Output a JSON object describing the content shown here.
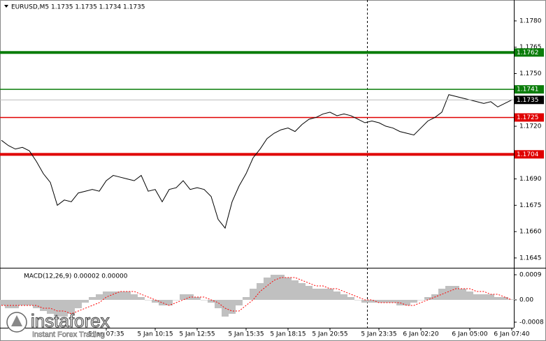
{
  "chart_data": [
    {
      "type": "line",
      "title": "EURUSD,M5  1.1735 1.1735 1.1734 1.1735",
      "color": "#000000",
      "values": [
        1.1712,
        1.1709,
        1.1707,
        1.1708,
        1.1706,
        1.17,
        1.1693,
        1.1688,
        1.1675,
        1.1678,
        1.1677,
        1.1682,
        1.1683,
        1.1684,
        1.1683,
        1.1689,
        1.1692,
        1.1691,
        1.169,
        1.1689,
        1.1692,
        1.1683,
        1.1684,
        1.1677,
        1.1684,
        1.1685,
        1.1689,
        1.1684,
        1.1685,
        1.1684,
        1.168,
        1.1667,
        1.1662,
        1.1677,
        1.1686,
        1.1693,
        1.1702,
        1.1707,
        1.1713,
        1.1716,
        1.1718,
        1.1719,
        1.1717,
        1.1721,
        1.1724,
        1.1725,
        1.1727,
        1.1728,
        1.1726,
        1.1727,
        1.1726,
        1.1724,
        1.1722,
        1.1723,
        1.1722,
        1.172,
        1.1719,
        1.1717,
        1.1716,
        1.1715,
        1.1719,
        1.1723,
        1.1725,
        1.1728,
        1.1738,
        1.1737,
        1.1736,
        1.1735,
        1.1734,
        1.1733,
        1.1734,
        1.1731,
        1.1733,
        1.1735
      ],
      "ylim": [
        1.16398,
        1.17911
      ],
      "yticks": [
        {
          "value": 1.178,
          "label": "1.1780"
        },
        {
          "value": 1.1765,
          "label": "1.1765"
        },
        {
          "value": 1.175,
          "label": "1.1750"
        },
        {
          "value": 1.172,
          "label": "1.1720"
        },
        {
          "value": 1.169,
          "label": "1.1690"
        },
        {
          "value": 1.1675,
          "label": "1.1675"
        },
        {
          "value": 1.166,
          "label": "1.1660"
        },
        {
          "value": 1.1645,
          "label": "1.1645"
        }
      ],
      "levels": [
        {
          "value": 1.1762,
          "color": "#0a7d0a",
          "style": "thick"
        },
        {
          "value": 1.1741,
          "color": "#0a7d0a",
          "style": "thin"
        },
        {
          "value": 1.1725,
          "color": "#e00000",
          "style": "thin"
        },
        {
          "value": 1.1704,
          "color": "#e00000",
          "style": "thick"
        }
      ],
      "last": {
        "value": 1.1735,
        "color": "#000000"
      }
    },
    {
      "type": "macd",
      "title": "MACD(12,26,9) 0.00002 0.00000",
      "histogram": {
        "color": "#c0c0c0",
        "values": [
          -0.0002,
          -0.0003,
          -0.0003,
          -0.0002,
          -0.0002,
          -0.0003,
          -0.0004,
          -0.0005,
          -0.0006,
          -0.0006,
          -0.0005,
          -0.0003,
          -0.0001,
          0.0001,
          0.0002,
          0.0003,
          0.0003,
          0.0003,
          0.0003,
          0.0002,
          0.0001,
          0,
          -0.0001,
          -0.0002,
          -0.0002,
          0,
          0.0002,
          0.0002,
          0.0001,
          0,
          -0.0001,
          -0.0003,
          -0.0006,
          -0.0005,
          -0.0002,
          0.0001,
          0.0004,
          0.0006,
          0.0008,
          0.0009,
          0.0009,
          0.0008,
          0.0007,
          0.0006,
          0.0005,
          0.0004,
          0.0004,
          0.0004,
          0.0003,
          0.0002,
          0.0001,
          0,
          -0.0001,
          -0.0001,
          -0.0001,
          -0.0001,
          -0.0001,
          -0.0002,
          -0.0002,
          -0.0001,
          0,
          0.0001,
          0.0002,
          0.0004,
          0.0005,
          0.0005,
          0.0004,
          0.0003,
          0.0002,
          0.0002,
          0.0002,
          0.0001,
          0.0001,
          2e-05
        ]
      },
      "signal": {
        "color": "#ff0000",
        "values": [
          -0.0002,
          -0.0002,
          -0.0002,
          -0.0002,
          -0.0002,
          -0.0002,
          -0.0003,
          -0.0003,
          -0.0004,
          -0.0004,
          -0.0005,
          -0.0004,
          -0.0003,
          -0.0002,
          -0.0001,
          0.0001,
          0.0002,
          0.0003,
          0.0003,
          0.0003,
          0.0002,
          0.0001,
          0,
          -0.0001,
          -0.0002,
          -0.0001,
          0,
          0.0001,
          0.0001,
          0.0001,
          0,
          -0.0001,
          -0.0003,
          -0.0004,
          -0.0004,
          -0.0002,
          0,
          0.0003,
          0.0005,
          0.0007,
          0.0008,
          0.0008,
          0.0008,
          0.0007,
          0.0006,
          0.0005,
          0.0005,
          0.0004,
          0.0004,
          0.0003,
          0.0002,
          0.0001,
          0,
          0,
          -0.0001,
          -0.0001,
          -0.0001,
          -0.0001,
          -0.0002,
          -0.0002,
          -0.0001,
          0,
          0.0001,
          0.0002,
          0.0003,
          0.0004,
          0.0004,
          0.0004,
          0.0003,
          0.0003,
          0.0002,
          0.0002,
          0.0001,
          0
        ]
      },
      "ylim": [
        -0.001,
        0.0011
      ],
      "yticks": [
        0.0009,
        {
          "value": 0,
          "label": "0.00"
        },
        -0.0008
      ],
      "categories": [
        null,
        null,
        null,
        null,
        null,
        null,
        null,
        null,
        null,
        null,
        null,
        null,
        null,
        null,
        null,
        "5 Jan 07:35",
        null,
        null,
        null,
        null,
        null,
        null,
        "5 Jan 10:15",
        null,
        null,
        null,
        null,
        null,
        "5 Jan 12:55",
        null,
        null,
        null,
        null,
        null,
        null,
        "5 Jan 15:35",
        null,
        null,
        null,
        null,
        null,
        "5 Jan 18:15",
        null,
        null,
        null,
        null,
        null,
        "5 Jan 20:55",
        null,
        null,
        null,
        null,
        null,
        null,
        "5 Jan 23:35",
        null,
        null,
        null,
        null,
        null,
        "6 Jan 02:20",
        null,
        null,
        null,
        null,
        null,
        null,
        "6 Jan 05:00",
        null,
        null,
        null,
        null,
        null,
        "6 Jan 07:40"
      ]
    }
  ],
  "watermark": {
    "brand": "instaforex",
    "tagline": "Instant Forex Trading"
  }
}
